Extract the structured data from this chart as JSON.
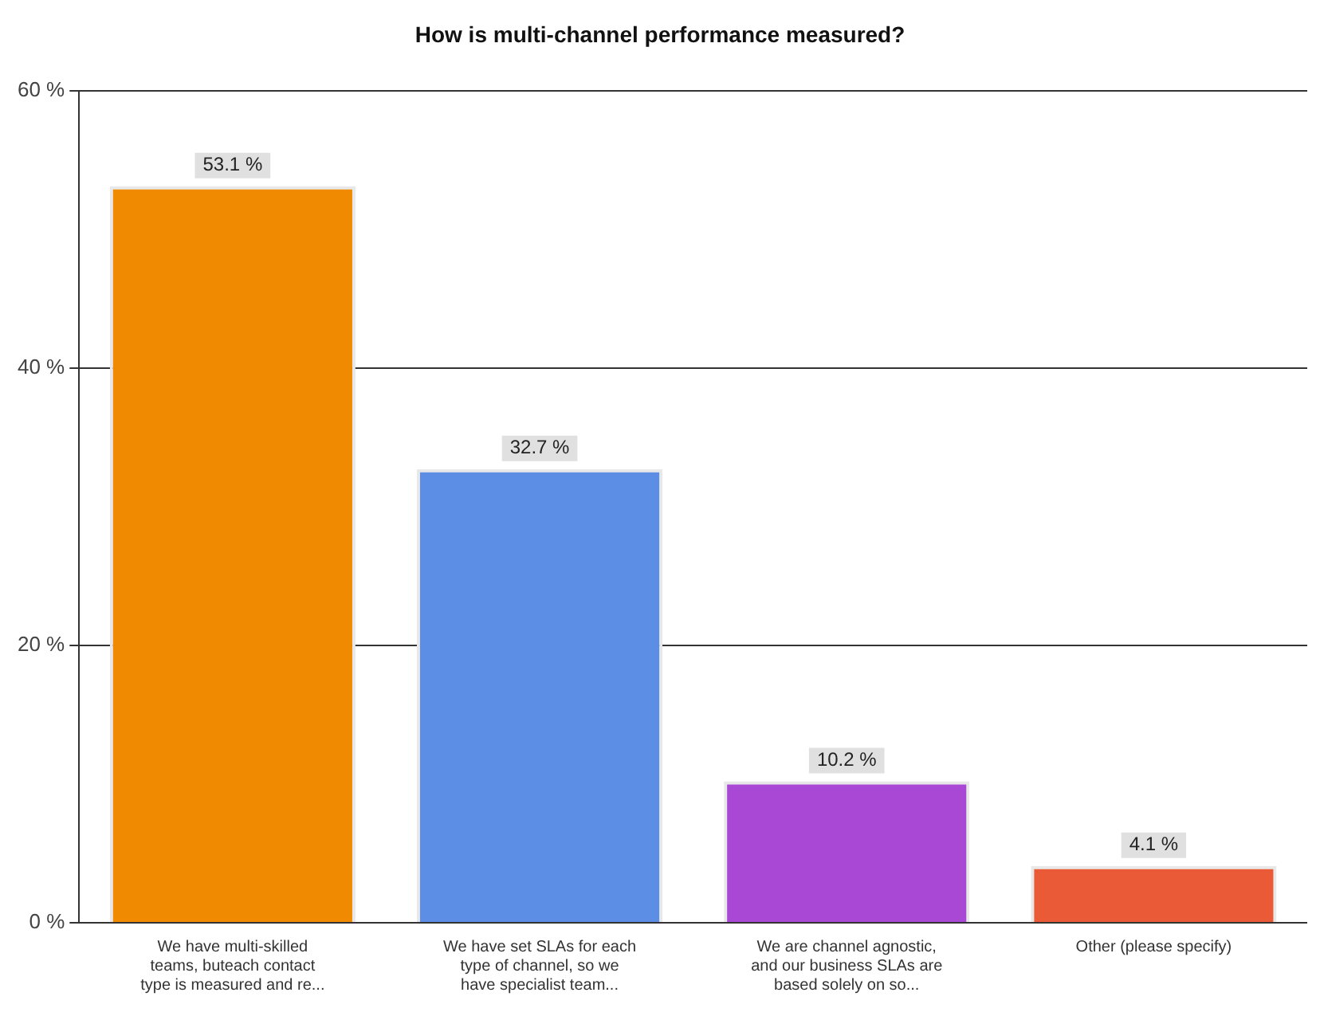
{
  "chart_data": {
    "type": "bar",
    "title": "How is multi-channel performance measured?",
    "categories": [
      "We have multi-skilled teams, buteach contact type is measured and re...",
      "We have set SLAs for each type of channel, so we have specialist team...",
      "We are channel agnostic, and our business SLAs are based solely on so...",
      "Other (please specify)"
    ],
    "values": [
      53.1,
      32.7,
      10.2,
      4.1
    ],
    "colors": [
      "#f08a00",
      "#5c8ee6",
      "#a848d4",
      "#ea5a36"
    ],
    "value_labels": [
      "53.1 %",
      "32.7 %",
      "10.2 %",
      "4.1 %"
    ],
    "ylim": [
      0,
      60
    ],
    "yticks": [
      {
        "value": 0,
        "label": "0 %"
      },
      {
        "value": 20,
        "label": "20 %"
      },
      {
        "value": 40,
        "label": "40 %"
      },
      {
        "value": 60,
        "label": "60 %"
      }
    ],
    "grid": "y",
    "legend": false
  }
}
